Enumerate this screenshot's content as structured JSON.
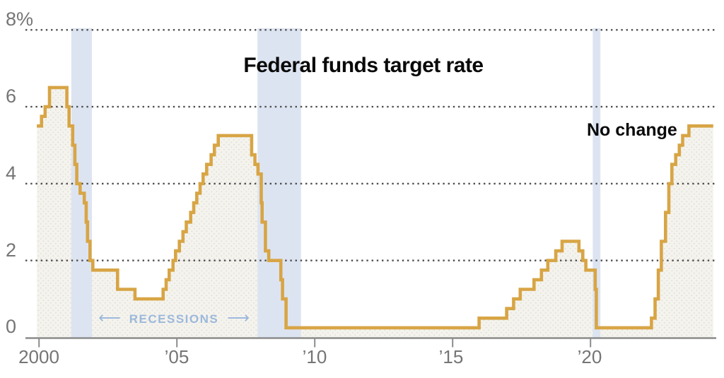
{
  "title": "Federal funds target rate",
  "annotations": {
    "no_change": "No change",
    "recessions_label": "RECESSIONS",
    "arrow_left": "⟵",
    "arrow_right": "⟶"
  },
  "colors": {
    "line": "#d8a545",
    "area_fill": "#f4f3ee",
    "area_dot": "#e3e1d6",
    "recession_band": "#dde4f1",
    "recessions_text": "#9cb8db",
    "gridline": "#4f4f4f",
    "axis": "#8c8c8c",
    "tick_label": "#757575",
    "title_text": "#0a0a0a"
  },
  "chart_data": {
    "type": "line",
    "step": "post",
    "title": "Federal funds target rate",
    "xlim": [
      1999.92,
      2024.45
    ],
    "ylim": [
      0,
      8
    ],
    "grid": "dotted-horizontal",
    "legend": "none",
    "y_ticks": [
      {
        "label": "8%",
        "value": 8
      },
      {
        "label": "6",
        "value": 6
      },
      {
        "label": "4",
        "value": 4
      },
      {
        "label": "2",
        "value": 2
      },
      {
        "label": "0",
        "value": 0
      }
    ],
    "x_ticks": [
      {
        "label": "2000",
        "year": 2000
      },
      {
        "label": "’05",
        "year": 2005
      },
      {
        "label": "’10",
        "year": 2010
      },
      {
        "label": "’15",
        "year": 2015
      },
      {
        "label": "’20",
        "year": 2020
      }
    ],
    "recession_bands": [
      [
        2001.17,
        2001.92
      ],
      [
        2007.92,
        2009.5
      ],
      [
        2020.08,
        2020.36
      ]
    ],
    "series": [
      {
        "name": "Federal funds target rate",
        "points": [
          [
            1999.92,
            5.5
          ],
          [
            2000.09,
            5.75
          ],
          [
            2000.22,
            6.0
          ],
          [
            2000.38,
            6.5
          ],
          [
            2001.01,
            6.0
          ],
          [
            2001.09,
            5.5
          ],
          [
            2001.22,
            5.0
          ],
          [
            2001.3,
            4.5
          ],
          [
            2001.37,
            4.0
          ],
          [
            2001.49,
            3.75
          ],
          [
            2001.64,
            3.5
          ],
          [
            2001.71,
            3.0
          ],
          [
            2001.76,
            2.5
          ],
          [
            2001.85,
            2.0
          ],
          [
            2001.95,
            1.75
          ],
          [
            2002.85,
            1.25
          ],
          [
            2003.48,
            1.0
          ],
          [
            2004.5,
            1.25
          ],
          [
            2004.61,
            1.5
          ],
          [
            2004.72,
            1.75
          ],
          [
            2004.86,
            2.0
          ],
          [
            2004.95,
            2.25
          ],
          [
            2005.09,
            2.5
          ],
          [
            2005.22,
            2.75
          ],
          [
            2005.34,
            3.0
          ],
          [
            2005.5,
            3.25
          ],
          [
            2005.61,
            3.5
          ],
          [
            2005.72,
            3.75
          ],
          [
            2005.84,
            4.0
          ],
          [
            2005.95,
            4.25
          ],
          [
            2006.08,
            4.5
          ],
          [
            2006.24,
            4.75
          ],
          [
            2006.36,
            5.0
          ],
          [
            2006.5,
            5.25
          ],
          [
            2007.71,
            4.75
          ],
          [
            2007.83,
            4.5
          ],
          [
            2007.94,
            4.25
          ],
          [
            2008.06,
            3.5
          ],
          [
            2008.09,
            3.0
          ],
          [
            2008.21,
            2.25
          ],
          [
            2008.33,
            2.0
          ],
          [
            2008.77,
            1.5
          ],
          [
            2008.83,
            1.0
          ],
          [
            2008.96,
            0.25
          ],
          [
            2015.96,
            0.5
          ],
          [
            2016.96,
            0.75
          ],
          [
            2017.21,
            1.0
          ],
          [
            2017.45,
            1.25
          ],
          [
            2017.95,
            1.5
          ],
          [
            2018.22,
            1.75
          ],
          [
            2018.45,
            2.0
          ],
          [
            2018.74,
            2.25
          ],
          [
            2018.97,
            2.5
          ],
          [
            2019.58,
            2.25
          ],
          [
            2019.72,
            2.0
          ],
          [
            2019.83,
            1.75
          ],
          [
            2020.17,
            1.25
          ],
          [
            2020.21,
            0.25
          ],
          [
            2022.21,
            0.5
          ],
          [
            2022.34,
            1.0
          ],
          [
            2022.46,
            1.75
          ],
          [
            2022.57,
            2.5
          ],
          [
            2022.72,
            3.25
          ],
          [
            2022.84,
            4.0
          ],
          [
            2022.95,
            4.5
          ],
          [
            2023.09,
            4.75
          ],
          [
            2023.22,
            5.0
          ],
          [
            2023.34,
            5.25
          ],
          [
            2023.57,
            5.5
          ],
          [
            2024.45,
            5.5
          ]
        ]
      }
    ]
  }
}
